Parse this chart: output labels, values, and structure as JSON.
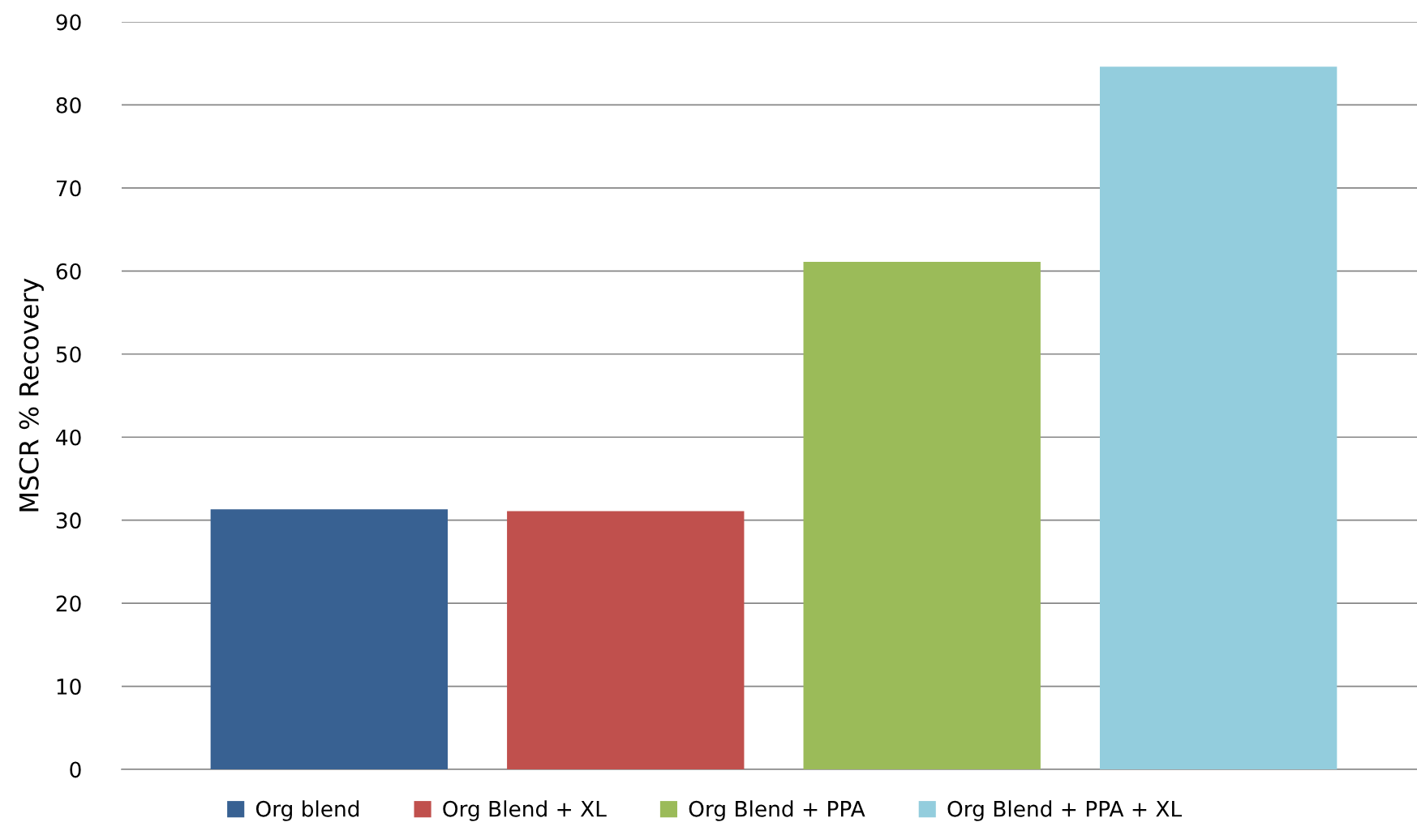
{
  "chart_data": {
    "type": "bar",
    "ylabel": "MSCR % Recovery",
    "categories": [
      null,
      null,
      null,
      null
    ],
    "series": [
      {
        "name": "Org blend",
        "color": "#386192",
        "values": [
          31.3,
          null,
          null,
          null
        ]
      },
      {
        "name": "Org Blend + XL",
        "color": "#c0504d",
        "values": [
          null,
          31.1,
          null,
          null
        ]
      },
      {
        "name": "Org Blend + PPA",
        "color": "#9bbb59",
        "values": [
          null,
          null,
          61.1,
          null
        ]
      },
      {
        "name": "Org Blend + PPA + XL",
        "color": "#93cddd",
        "values": [
          null,
          null,
          null,
          84.6
        ]
      }
    ],
    "ylim": [
      0,
      90
    ],
    "yticks": [
      0,
      10,
      20,
      30,
      40,
      50,
      60,
      70,
      80,
      90
    ],
    "grid": "y",
    "legend": "bottom"
  }
}
